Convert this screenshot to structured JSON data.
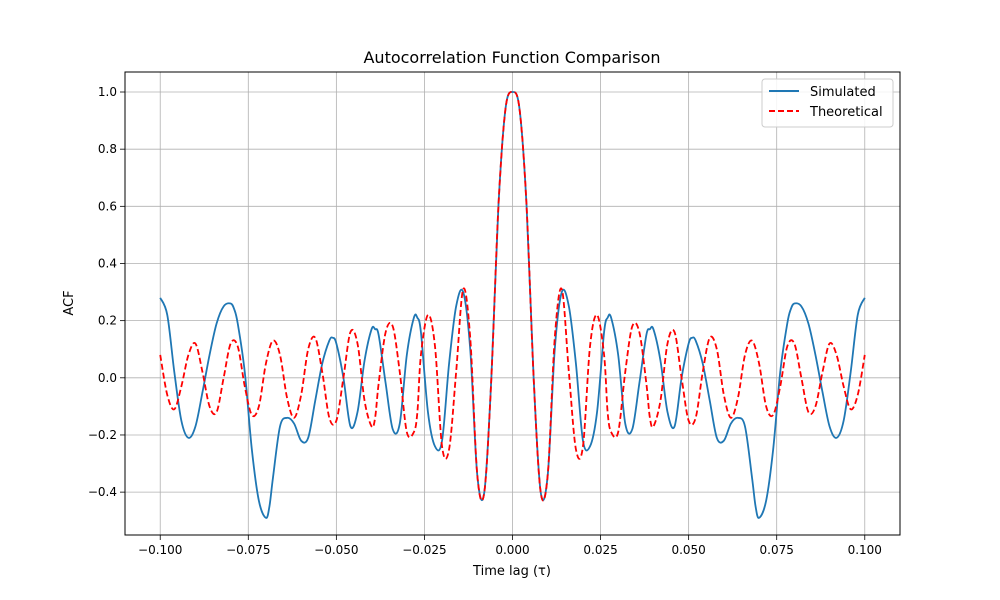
{
  "chart_data": {
    "type": "line",
    "title": "Autocorrelation Function Comparison",
    "xlabel": "Time lag (τ)",
    "ylabel": "ACF",
    "xlim": [
      -0.11,
      0.11
    ],
    "ylim": [
      -0.55,
      1.07
    ],
    "x_ticks": [
      -0.1,
      -0.075,
      -0.05,
      -0.025,
      0.0,
      0.025,
      0.05,
      0.075,
      0.1
    ],
    "x_tick_labels": [
      "−0.100",
      "−0.075",
      "−0.050",
      "−0.025",
      "0.000",
      "0.025",
      "0.050",
      "0.075",
      "0.100"
    ],
    "y_ticks": [
      -0.4,
      -0.2,
      0.0,
      0.2,
      0.4,
      0.6,
      0.8,
      1.0
    ],
    "y_tick_labels": [
      "−0.4",
      "−0.2",
      "0.0",
      "0.2",
      "0.4",
      "0.6",
      "0.8",
      "1.0"
    ],
    "grid": true,
    "legend_position": "top-right",
    "series": [
      {
        "name": "Simulated",
        "color": "#1f77b4",
        "dash": "solid",
        "x": [
          -0.1,
          -0.098,
          -0.096,
          -0.094,
          -0.092,
          -0.09,
          -0.088,
          -0.086,
          -0.084,
          -0.082,
          -0.08,
          -0.079,
          -0.078,
          -0.076,
          -0.074,
          -0.072,
          -0.07,
          -0.069,
          -0.068,
          -0.066,
          -0.064,
          -0.062,
          -0.06,
          -0.058,
          -0.056,
          -0.054,
          -0.052,
          -0.051,
          -0.05,
          -0.048,
          -0.046,
          -0.044,
          -0.042,
          -0.04,
          -0.039,
          -0.038,
          -0.036,
          -0.034,
          -0.032,
          -0.03,
          -0.028,
          -0.027,
          -0.026,
          -0.024,
          -0.022,
          -0.02,
          -0.018,
          -0.016,
          -0.014,
          -0.012,
          -0.01,
          -0.008,
          -0.006,
          -0.004,
          -0.002,
          0.0,
          0.002,
          0.004,
          0.006,
          0.008,
          0.01,
          0.012,
          0.014,
          0.016,
          0.018,
          0.02,
          0.022,
          0.024,
          0.026,
          0.027,
          0.028,
          0.03,
          0.032,
          0.034,
          0.036,
          0.038,
          0.039,
          0.04,
          0.042,
          0.044,
          0.046,
          0.048,
          0.05,
          0.051,
          0.052,
          0.054,
          0.056,
          0.058,
          0.06,
          0.062,
          0.064,
          0.066,
          0.068,
          0.069,
          0.07,
          0.072,
          0.074,
          0.076,
          0.078,
          0.079,
          0.08,
          0.082,
          0.084,
          0.086,
          0.088,
          0.09,
          0.092,
          0.094,
          0.096,
          0.098,
          0.1
        ],
        "values": [
          0.28,
          0.22,
          0.02,
          -0.15,
          -0.21,
          -0.17,
          -0.05,
          0.08,
          0.19,
          0.25,
          0.26,
          0.24,
          0.19,
          0.02,
          -0.25,
          -0.43,
          -0.49,
          -0.45,
          -0.35,
          -0.17,
          -0.14,
          -0.16,
          -0.22,
          -0.21,
          -0.08,
          0.05,
          0.13,
          0.14,
          0.12,
          0.0,
          -0.17,
          -0.12,
          0.06,
          0.17,
          0.17,
          0.15,
          -0.02,
          -0.18,
          -0.16,
          0.08,
          0.21,
          0.21,
          0.16,
          -0.12,
          -0.24,
          -0.22,
          0.05,
          0.25,
          0.3,
          0.1,
          -0.34,
          -0.4,
          0.0,
          0.6,
          0.94,
          1.0,
          0.94,
          0.6,
          0.0,
          -0.4,
          -0.34,
          0.1,
          0.3,
          0.25,
          0.05,
          -0.22,
          -0.24,
          -0.12,
          0.16,
          0.21,
          0.21,
          0.08,
          -0.16,
          -0.18,
          -0.02,
          0.15,
          0.17,
          0.17,
          0.06,
          -0.12,
          -0.17,
          0.0,
          0.12,
          0.14,
          0.13,
          0.05,
          -0.08,
          -0.21,
          -0.22,
          -0.16,
          -0.14,
          -0.17,
          -0.35,
          -0.45,
          -0.49,
          -0.43,
          -0.25,
          0.02,
          0.19,
          0.24,
          0.26,
          0.25,
          0.19,
          0.08,
          -0.05,
          -0.17,
          -0.21,
          -0.15,
          0.02,
          0.22,
          0.28
        ]
      },
      {
        "name": "Theoretical",
        "color": "#ff0000",
        "dash": "dashed",
        "x": [
          -0.1,
          -0.098,
          -0.096,
          -0.094,
          -0.092,
          -0.09,
          -0.088,
          -0.086,
          -0.084,
          -0.082,
          -0.08,
          -0.078,
          -0.076,
          -0.074,
          -0.072,
          -0.07,
          -0.068,
          -0.066,
          -0.064,
          -0.062,
          -0.06,
          -0.058,
          -0.056,
          -0.054,
          -0.052,
          -0.05,
          -0.048,
          -0.046,
          -0.044,
          -0.042,
          -0.04,
          -0.039,
          -0.038,
          -0.036,
          -0.034,
          -0.032,
          -0.03,
          -0.028,
          -0.027,
          -0.026,
          -0.024,
          -0.022,
          -0.02,
          -0.018,
          -0.016,
          -0.014,
          -0.012,
          -0.01,
          -0.008,
          -0.006,
          -0.004,
          -0.002,
          0.0,
          0.002,
          0.004,
          0.006,
          0.008,
          0.01,
          0.012,
          0.014,
          0.016,
          0.018,
          0.02,
          0.022,
          0.024,
          0.026,
          0.027,
          0.028,
          0.03,
          0.032,
          0.034,
          0.036,
          0.038,
          0.039,
          0.04,
          0.042,
          0.044,
          0.046,
          0.048,
          0.05,
          0.052,
          0.054,
          0.056,
          0.058,
          0.06,
          0.062,
          0.064,
          0.066,
          0.068,
          0.07,
          0.072,
          0.074,
          0.076,
          0.078,
          0.08,
          0.082,
          0.084,
          0.086,
          0.088,
          0.09,
          0.092,
          0.094,
          0.096,
          0.098,
          0.1
        ],
        "values": [
          0.08,
          -0.06,
          -0.11,
          -0.03,
          0.08,
          0.12,
          0.02,
          -0.1,
          -0.12,
          0.0,
          0.12,
          0.11,
          -0.03,
          -0.13,
          -0.1,
          0.05,
          0.13,
          0.08,
          -0.07,
          -0.14,
          -0.06,
          0.1,
          0.14,
          0.02,
          -0.14,
          -0.15,
          0.0,
          0.16,
          0.12,
          -0.08,
          -0.17,
          -0.14,
          -0.02,
          0.16,
          0.18,
          0.02,
          -0.19,
          -0.19,
          -0.12,
          0.08,
          0.22,
          0.11,
          -0.24,
          -0.25,
          0.02,
          0.31,
          0.14,
          -0.34,
          -0.4,
          0.0,
          0.6,
          0.94,
          1.0,
          0.94,
          0.6,
          0.0,
          -0.4,
          -0.34,
          0.14,
          0.31,
          0.02,
          -0.25,
          -0.24,
          0.11,
          0.22,
          0.08,
          -0.12,
          -0.19,
          -0.19,
          0.02,
          0.18,
          0.16,
          -0.02,
          -0.14,
          -0.17,
          -0.08,
          0.12,
          0.16,
          0.0,
          -0.15,
          -0.14,
          0.02,
          0.14,
          0.1,
          -0.06,
          -0.14,
          -0.07,
          0.08,
          0.13,
          0.05,
          -0.1,
          -0.13,
          -0.03,
          0.11,
          0.12,
          0.0,
          -0.12,
          -0.1,
          0.02,
          0.12,
          0.08,
          -0.03,
          -0.11,
          -0.06,
          0.08
        ]
      }
    ]
  }
}
